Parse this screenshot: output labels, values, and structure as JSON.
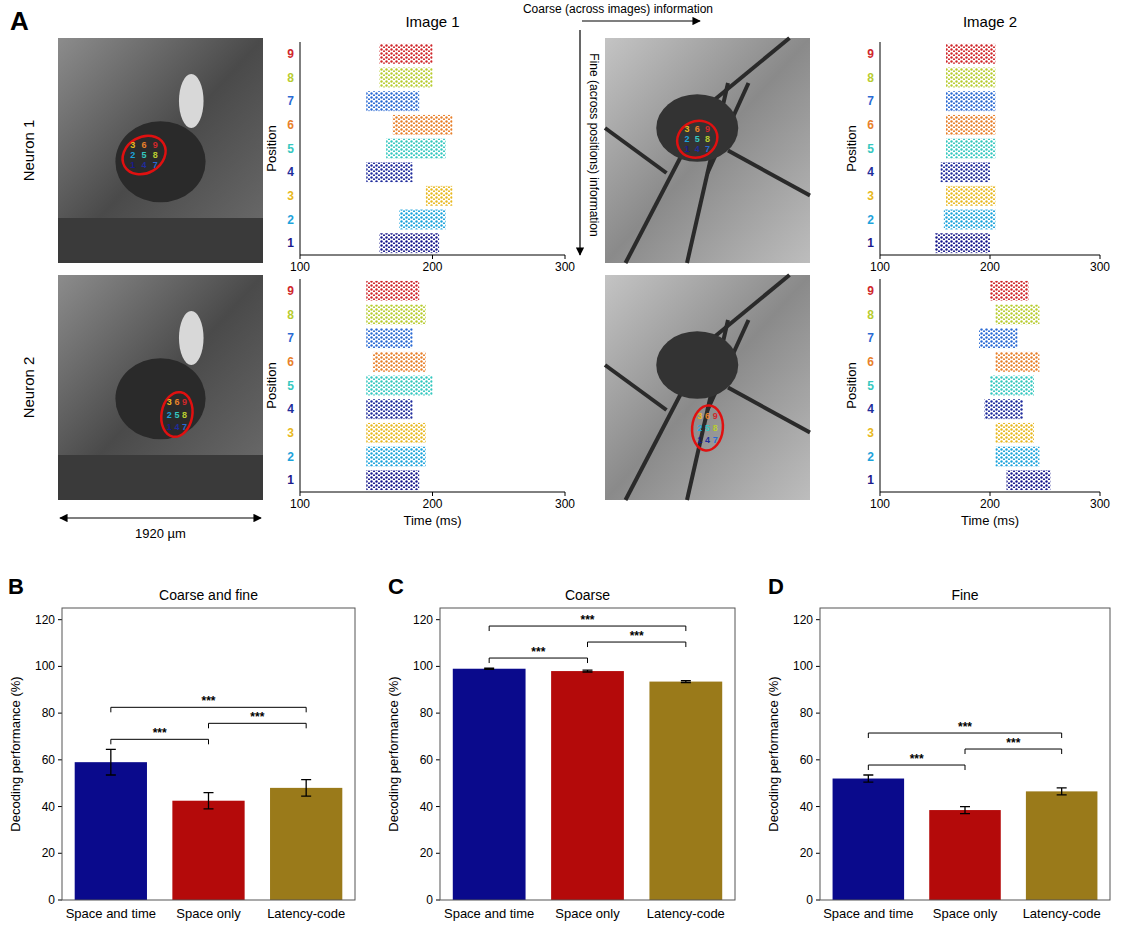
{
  "panel_a": {
    "letter": "A",
    "columns": [
      "Image 1",
      "Image 2"
    ],
    "rows": [
      "Neuron 1",
      "Neuron 2"
    ],
    "coarse_label": "Coarse (across images) information",
    "fine_label": "Fine (across positions) information",
    "scale_label": "1920 µm",
    "type": "raster",
    "xlabel": "Time (ms)",
    "ylabel": "Position",
    "xlim": [
      100,
      300
    ],
    "xticks": [
      100,
      200,
      300
    ],
    "positions": [
      1,
      2,
      3,
      4,
      5,
      6,
      7,
      8,
      9
    ],
    "colors": [
      "#1a1a8c",
      "#1ca3dc",
      "#e8b820",
      "#202c9c",
      "#35c8c0",
      "#e8802a",
      "#2a6ad4",
      "#b8cc30",
      "#d0282c"
    ],
    "spike_start": [
      [
        [
          160,
          175,
          195,
          150,
          165,
          170,
          150,
          160,
          160
        ],
        [
          150,
          158,
          160,
          155,
          160,
          160,
          160,
          160,
          160
        ]
      ],
      [
        [
          150,
          150,
          150,
          150,
          150,
          155,
          150,
          150,
          150
        ],
        [
          215,
          205,
          205,
          195,
          200,
          205,
          190,
          205,
          200
        ]
      ]
    ],
    "spike_end": [
      [
        [
          205,
          210,
          215,
          185,
          210,
          215,
          190,
          200,
          200
        ],
        [
          200,
          205,
          205,
          200,
          205,
          205,
          205,
          205,
          205
        ]
      ],
      [
        [
          190,
          195,
          195,
          185,
          200,
          195,
          185,
          195,
          190
        ],
        [
          255,
          245,
          240,
          230,
          240,
          245,
          225,
          245,
          235
        ]
      ]
    ]
  },
  "chart_data": [
    {
      "type": "bar",
      "panel": "B",
      "title": "Coarse and fine",
      "ylabel": "Decoding performance (%)",
      "categories": [
        "Space and time",
        "Space only",
        "Latency-code"
      ],
      "values": [
        59,
        42.5,
        48
      ],
      "errors": [
        5.5,
        3.5,
        3.5
      ],
      "colors": [
        "#0a0a8c",
        "#b40a0a",
        "#9a7a1a"
      ],
      "ylim": [
        0,
        125
      ],
      "yticks": [
        0,
        20,
        40,
        60,
        80,
        100,
        120
      ],
      "annotations": [
        {
          "between": [
            "Space and time",
            "Space only"
          ],
          "text": "***"
        },
        {
          "between": [
            "Space only",
            "Latency-code"
          ],
          "text": "***"
        },
        {
          "between": [
            "Space and time",
            "Latency-code"
          ],
          "text": "***"
        }
      ]
    },
    {
      "type": "bar",
      "panel": "C",
      "title": "Coarse",
      "ylabel": "Decoding performance (%)",
      "categories": [
        "Space and time",
        "Space only",
        "Latency-code"
      ],
      "values": [
        99,
        98,
        93.5
      ],
      "errors": [
        0.3,
        0.4,
        0.4
      ],
      "colors": [
        "#0a0a8c",
        "#b40a0a",
        "#9a7a1a"
      ],
      "ylim": [
        0,
        125
      ],
      "yticks": [
        0,
        20,
        40,
        60,
        80,
        100,
        120
      ],
      "annotations": [
        {
          "between": [
            "Space and time",
            "Space only"
          ],
          "text": "***"
        },
        {
          "between": [
            "Space only",
            "Latency-code"
          ],
          "text": "***"
        },
        {
          "between": [
            "Space and time",
            "Latency-code"
          ],
          "text": "***"
        }
      ]
    },
    {
      "type": "bar",
      "panel": "D",
      "title": "Fine",
      "ylabel": "Decoding performance (%)",
      "categories": [
        "Space and time",
        "Space only",
        "Latency-code"
      ],
      "values": [
        52,
        38.5,
        46.5
      ],
      "errors": [
        1.5,
        1.5,
        1.5
      ],
      "colors": [
        "#0a0a8c",
        "#b40a0a",
        "#9a7a1a"
      ],
      "ylim": [
        0,
        125
      ],
      "yticks": [
        0,
        20,
        40,
        60,
        80,
        100,
        120
      ],
      "annotations": [
        {
          "between": [
            "Space and time",
            "Space only"
          ],
          "text": "***"
        },
        {
          "between": [
            "Space only",
            "Latency-code"
          ],
          "text": "***"
        },
        {
          "between": [
            "Space and time",
            "Latency-code"
          ],
          "text": "***"
        }
      ]
    }
  ]
}
